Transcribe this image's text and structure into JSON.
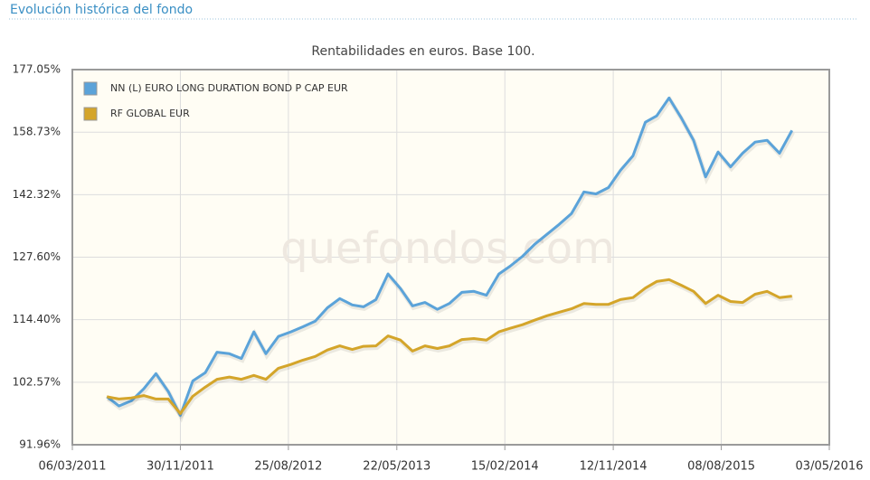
{
  "header": {
    "title": "Evolución histórica del fondo"
  },
  "chart_data": {
    "type": "line",
    "title": "Rentabilidades en euros. Base 100.",
    "watermark": "quefondos.com",
    "x": [
      "31/05/2011",
      "30/06/2011",
      "31/07/2011",
      "31/08/2011",
      "30/09/2011",
      "31/10/2011",
      "30/11/2011",
      "31/12/2011",
      "31/01/2012",
      "29/02/2012",
      "31/03/2012",
      "30/04/2012",
      "31/05/2012",
      "30/06/2012",
      "31/07/2012",
      "31/08/2012",
      "30/09/2012",
      "31/10/2012",
      "30/11/2012",
      "31/12/2012",
      "31/01/2013",
      "28/02/2013",
      "31/03/2013",
      "30/04/2013",
      "31/05/2013",
      "30/06/2013",
      "31/07/2013",
      "31/08/2013",
      "30/09/2013",
      "31/10/2013",
      "30/11/2013",
      "31/12/2013",
      "31/01/2014",
      "28/02/2014",
      "31/03/2014",
      "30/04/2014",
      "31/05/2014",
      "30/06/2014",
      "31/07/2014",
      "31/08/2014",
      "30/09/2014",
      "31/10/2014",
      "30/11/2014",
      "31/12/2014",
      "31/01/2015",
      "28/02/2015",
      "31/03/2015",
      "30/04/2015",
      "31/05/2015",
      "30/06/2015",
      "31/07/2015",
      "31/08/2015",
      "30/09/2015",
      "31/10/2015",
      "30/11/2015",
      "31/12/2015",
      "31/01/2016"
    ],
    "series": [
      {
        "name": "NN (L) EURO LONG DURATION BOND P CAP EUR",
        "color": "#5ba3d9",
        "values": [
          100,
          98.4,
          99.3,
          101.4,
          104.1,
          100.9,
          96.8,
          102.8,
          104.3,
          108.1,
          107.8,
          106.9,
          112.0,
          107.8,
          111.1,
          112.0,
          113.0,
          114.1,
          116.8,
          118.7,
          117.4,
          117.0,
          118.5,
          123.9,
          120.8,
          117.2,
          117.9,
          116.5,
          117.7,
          120.0,
          120.2,
          119.4,
          123.9,
          125.6,
          127.8,
          130.5,
          132.8,
          135.1,
          137.7,
          143.0,
          142.5,
          144.1,
          148.5,
          152.3,
          161.5,
          163.3,
          168.5,
          162.8,
          156.5,
          146.8,
          153.3,
          149.4,
          153.0,
          156.0,
          156.5,
          153.0,
          159.2
        ]
      },
      {
        "name": "RF GLOBAL EUR",
        "color": "#d4a52a",
        "values": [
          100,
          99.6,
          99.8,
          100.2,
          99.6,
          99.6,
          97.1,
          100.1,
          101.7,
          103.1,
          103.5,
          103.1,
          103.8,
          103.1,
          105.1,
          105.8,
          106.6,
          107.3,
          108.5,
          109.3,
          108.6,
          109.2,
          109.3,
          111.2,
          110.4,
          108.3,
          109.3,
          108.8,
          109.3,
          110.5,
          110.7,
          110.4,
          112.0,
          112.7,
          113.4,
          114.3,
          115.2,
          115.9,
          116.6,
          117.7,
          117.5,
          117.5,
          118.5,
          118.9,
          120.9,
          122.3,
          122.7,
          121.5,
          120.2,
          117.7,
          119.4,
          118.1,
          117.9,
          119.6,
          120.2,
          118.9,
          119.2
        ]
      }
    ],
    "xlim": [
      "06/03/2011",
      "03/05/2016"
    ],
    "xticks": [
      "06/03/2011",
      "30/11/2011",
      "25/08/2012",
      "22/05/2013",
      "15/02/2014",
      "12/11/2014",
      "08/08/2015",
      "03/05/2016"
    ],
    "ylim": [
      91.96,
      177.05
    ],
    "log_y": true,
    "yticks": [
      {
        "value": 91.96,
        "label": "91.96%"
      },
      {
        "value": 102.57,
        "label": "102.57%"
      },
      {
        "value": 114.4,
        "label": "114.40%"
      },
      {
        "value": 127.6,
        "label": "127.60%"
      },
      {
        "value": 142.32,
        "label": "142.32%"
      },
      {
        "value": 158.73,
        "label": "158.73%"
      },
      {
        "value": 177.05,
        "label": "177.05%"
      }
    ],
    "grid": true,
    "legend": "top-left"
  }
}
